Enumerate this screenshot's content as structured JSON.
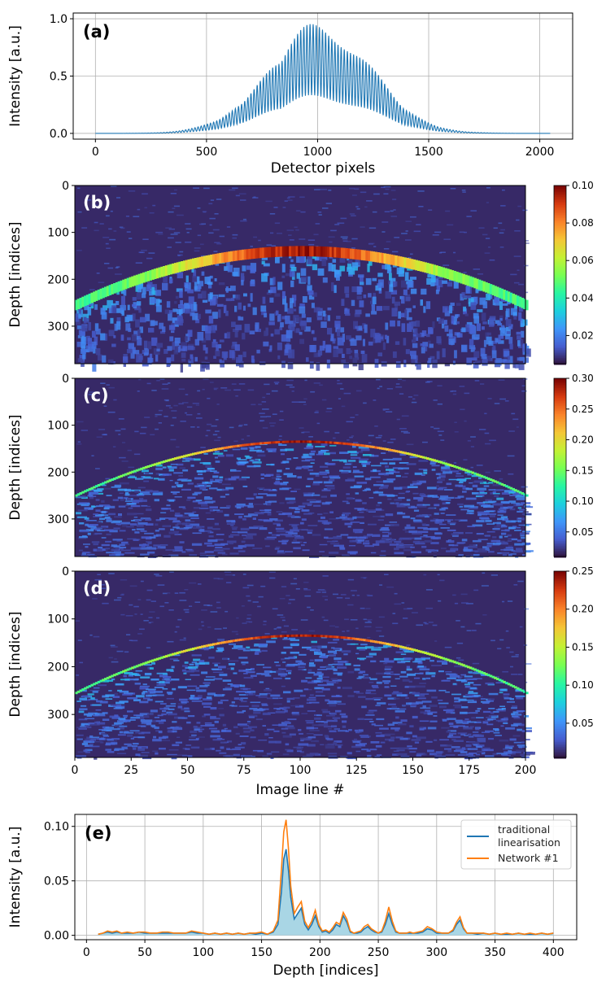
{
  "figure": {
    "chart_data": [
      {
        "type": "line",
        "panel_label": "(a)",
        "xlabel": "Detector pixels",
        "ylabel": "Intensity [a.u.]",
        "xlim": [
          -100,
          2148
        ],
        "ylim": [
          -0.05,
          1.05
        ],
        "xticks": [
          0,
          500,
          1000,
          1500,
          2000
        ],
        "yticks": [
          0.0,
          0.5,
          1.0
        ],
        "xtick_labels": [
          "0",
          "500",
          "1000",
          "1500",
          "2000"
        ],
        "ytick_labels": [
          "0.0",
          "0.5",
          "1.0"
        ],
        "grid": true,
        "series": [
          {
            "color": "#1f77b4",
            "envelope": {
              "center_x": 1010,
              "sigma": 230,
              "peak": 1.0,
              "fringe_period": 14,
              "x_start": 0,
              "x_end": 2047
            }
          }
        ]
      },
      {
        "type": "heatmap",
        "panel_label": "(b)",
        "ylabel": "Depth [indices]",
        "xlim": [
          0,
          200
        ],
        "ylim": [
          380,
          0
        ],
        "yticks": [
          0,
          100,
          200,
          300
        ],
        "ytick_labels": [
          "0",
          "100",
          "200",
          "300"
        ],
        "colormap": "turbo",
        "clim": [
          0.005,
          0.1
        ],
        "colorbar_ticks": [
          0.02,
          0.04,
          0.06,
          0.08,
          0.1
        ],
        "colorbar_labels": [
          "0.02",
          "0.04",
          "0.06",
          "0.08",
          "0.10"
        ],
        "surface": {
          "apex_x": 100,
          "apex_depth": 140,
          "edge_depth": 255,
          "thickness": 22,
          "peak_value": 0.1
        }
      },
      {
        "type": "heatmap",
        "panel_label": "(c)",
        "ylabel": "Depth [indices]",
        "xlim": [
          0,
          200
        ],
        "ylim": [
          380,
          0
        ],
        "yticks": [
          0,
          100,
          200,
          300
        ],
        "ytick_labels": [
          "0",
          "100",
          "200",
          "300"
        ],
        "colormap": "turbo",
        "clim": [
          0.01,
          0.3
        ],
        "colorbar_ticks": [
          0.05,
          0.1,
          0.15,
          0.2,
          0.25,
          0.3
        ],
        "colorbar_labels": [
          "0.05",
          "0.10",
          "0.15",
          "0.20",
          "0.25",
          "0.30"
        ],
        "surface": {
          "apex_x": 100,
          "apex_depth": 135,
          "edge_depth": 250,
          "thickness": 5,
          "peak_value": 0.3
        }
      },
      {
        "type": "heatmap",
        "panel_label": "(d)",
        "xlabel": "Image line #",
        "ylabel": "Depth [indices]",
        "xlim": [
          0,
          200
        ],
        "ylim": [
          390,
          0
        ],
        "xticks": [
          0,
          25,
          50,
          75,
          100,
          125,
          150,
          175,
          200
        ],
        "xtick_labels": [
          "0",
          "25",
          "50",
          "75",
          "100",
          "125",
          "150",
          "175",
          "200"
        ],
        "yticks": [
          0,
          100,
          200,
          300
        ],
        "ytick_labels": [
          "0",
          "100",
          "200",
          "300"
        ],
        "colormap": "turbo",
        "clim": [
          0.005,
          0.25
        ],
        "colorbar_ticks": [
          0.05,
          0.1,
          0.15,
          0.2,
          0.25
        ],
        "colorbar_labels": [
          "0.05",
          "0.10",
          "0.15",
          "0.20",
          "0.25"
        ],
        "surface": {
          "apex_x": 100,
          "apex_depth": 135,
          "edge_depth": 255,
          "thickness": 5,
          "peak_value": 0.25
        }
      },
      {
        "type": "line",
        "panel_label": "(e)",
        "xlabel": "Depth [indices]",
        "ylabel": "Intensity [a.u.]",
        "xlim": [
          -10,
          420
        ],
        "ylim": [
          -0.004,
          0.111
        ],
        "xticks": [
          0,
          50,
          100,
          150,
          200,
          250,
          300,
          350,
          400
        ],
        "xtick_labels": [
          "0",
          "50",
          "100",
          "150",
          "200",
          "250",
          "300",
          "350",
          "400"
        ],
        "yticks": [
          0.0,
          0.05,
          0.1
        ],
        "ytick_labels": [
          "0.00",
          "0.05",
          "0.10"
        ],
        "grid": true,
        "legend_position": "top-right",
        "series": [
          {
            "name": "traditional linearisation",
            "legend_lines": [
              "traditional",
              "linearisation"
            ],
            "color": "#1f77b4",
            "fill": "#a9d6e5",
            "x": [
              10,
              14,
              18,
              22,
              26,
              30,
              35,
              40,
              45,
              50,
              55,
              60,
              65,
              70,
              75,
              80,
              85,
              90,
              95,
              100,
              105,
              110,
              115,
              120,
              125,
              130,
              135,
              140,
              145,
              150,
              155,
              160,
              164,
              167,
              169,
              171,
              173,
              175,
              178,
              181,
              184,
              187,
              190,
              193,
              196,
              199,
              202,
              205,
              208,
              211,
              214,
              217,
              220,
              223,
              226,
              229,
              232,
              235,
              238,
              241,
              244,
              247,
              250,
              253,
              256,
              259,
              262,
              265,
              268,
              271,
              274,
              277,
              280,
              284,
              288,
              292,
              296,
              300,
              305,
              310,
              314,
              317,
              320,
              323,
              326,
              330,
              335,
              340,
              345,
              350,
              355,
              360,
              365,
              370,
              375,
              380,
              385,
              390,
              395,
              400
            ],
            "y": [
              0.001,
              0.002,
              0.003,
              0.002,
              0.003,
              0.002,
              0.002,
              0.002,
              0.003,
              0.002,
              0.002,
              0.002,
              0.002,
              0.002,
              0.002,
              0.002,
              0.002,
              0.003,
              0.002,
              0.002,
              0.001,
              0.002,
              0.001,
              0.002,
              0.001,
              0.002,
              0.001,
              0.002,
              0.001,
              0.002,
              0.001,
              0.003,
              0.01,
              0.04,
              0.07,
              0.079,
              0.06,
              0.035,
              0.015,
              0.02,
              0.025,
              0.01,
              0.005,
              0.01,
              0.018,
              0.008,
              0.003,
              0.004,
              0.002,
              0.005,
              0.01,
              0.008,
              0.018,
              0.012,
              0.003,
              0.002,
              0.002,
              0.003,
              0.006,
              0.008,
              0.005,
              0.003,
              0.002,
              0.003,
              0.01,
              0.02,
              0.01,
              0.003,
              0.002,
              0.002,
              0.002,
              0.002,
              0.002,
              0.002,
              0.003,
              0.006,
              0.005,
              0.002,
              0.002,
              0.002,
              0.004,
              0.01,
              0.014,
              0.006,
              0.002,
              0.002,
              0.001,
              0.002,
              0.001,
              0.002,
              0.001,
              0.001,
              0.001,
              0.002,
              0.001,
              0.001,
              0.001,
              0.002,
              0.001,
              0.002
            ]
          },
          {
            "name": "Network #1",
            "color": "#ff7f0e",
            "x": [
              10,
              14,
              18,
              22,
              26,
              30,
              35,
              40,
              45,
              50,
              55,
              60,
              65,
              70,
              75,
              80,
              85,
              90,
              95,
              100,
              105,
              110,
              115,
              120,
              125,
              130,
              135,
              140,
              145,
              150,
              155,
              160,
              164,
              167,
              169,
              171,
              173,
              175,
              178,
              181,
              184,
              187,
              190,
              193,
              196,
              199,
              202,
              205,
              208,
              211,
              214,
              217,
              220,
              223,
              226,
              229,
              232,
              235,
              238,
              241,
              244,
              247,
              250,
              253,
              256,
              259,
              262,
              265,
              268,
              271,
              274,
              277,
              280,
              284,
              288,
              292,
              296,
              300,
              305,
              310,
              314,
              317,
              320,
              323,
              326,
              330,
              335,
              340,
              345,
              350,
              355,
              360,
              365,
              370,
              375,
              380,
              385,
              390,
              395,
              400
            ],
            "y": [
              0.001,
              0.002,
              0.004,
              0.003,
              0.004,
              0.002,
              0.003,
              0.002,
              0.003,
              0.003,
              0.002,
              0.002,
              0.003,
              0.003,
              0.002,
              0.002,
              0.002,
              0.004,
              0.003,
              0.002,
              0.001,
              0.002,
              0.001,
              0.002,
              0.001,
              0.002,
              0.001,
              0.002,
              0.002,
              0.003,
              0.001,
              0.004,
              0.014,
              0.06,
              0.095,
              0.106,
              0.08,
              0.045,
              0.02,
              0.026,
              0.031,
              0.013,
              0.007,
              0.013,
              0.023,
              0.01,
              0.004,
              0.005,
              0.003,
              0.007,
              0.012,
              0.01,
              0.021,
              0.015,
              0.004,
              0.002,
              0.003,
              0.004,
              0.008,
              0.01,
              0.006,
              0.004,
              0.002,
              0.004,
              0.013,
              0.026,
              0.013,
              0.004,
              0.002,
              0.002,
              0.002,
              0.003,
              0.002,
              0.003,
              0.004,
              0.008,
              0.006,
              0.003,
              0.002,
              0.002,
              0.005,
              0.012,
              0.017,
              0.007,
              0.002,
              0.002,
              0.002,
              0.002,
              0.001,
              0.002,
              0.001,
              0.002,
              0.001,
              0.002,
              0.001,
              0.002,
              0.001,
              0.002,
              0.001,
              0.002
            ]
          }
        ]
      }
    ]
  }
}
